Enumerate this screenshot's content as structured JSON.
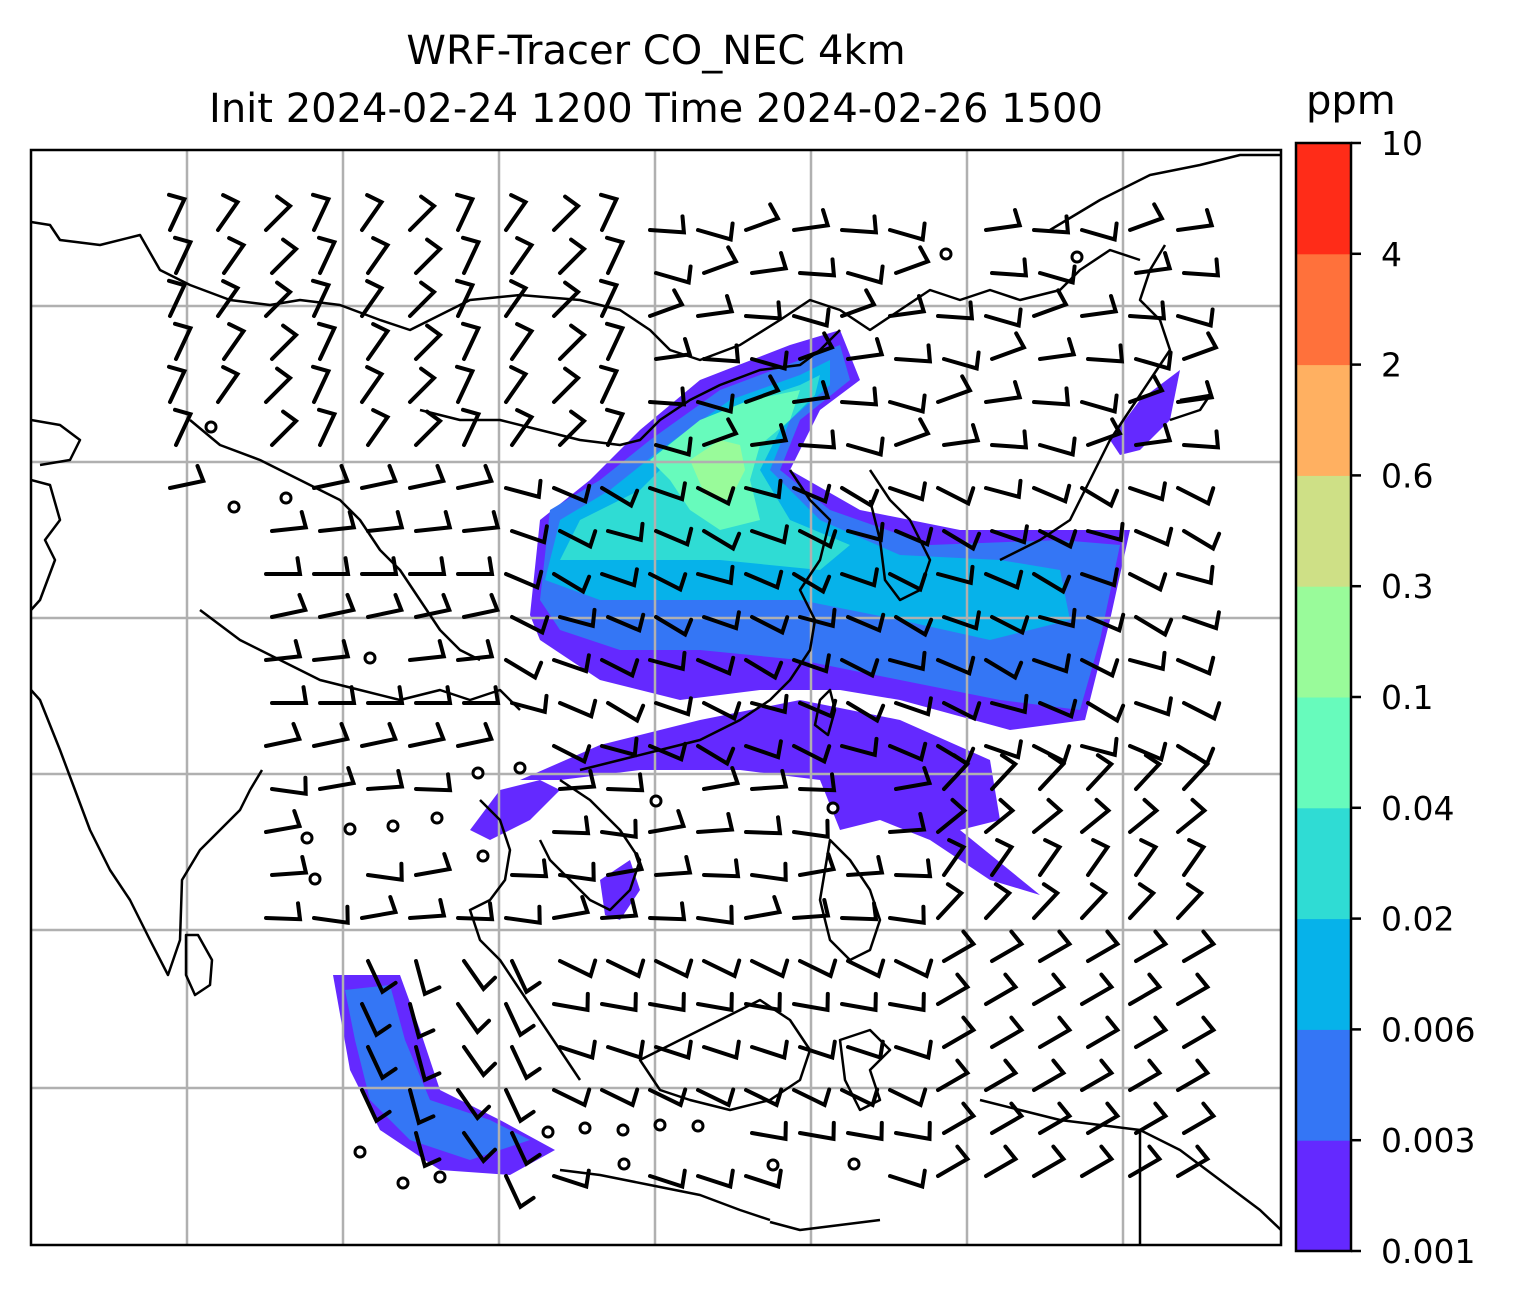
{
  "title_line1": "WRF-Tracer CO_NEC 4km",
  "title_line2": "Init 2024-02-24 1200 Time 2024-02-26 1500",
  "colorbar": {
    "unit_label": "ppm",
    "levels": [
      "0.001",
      "0.003",
      "0.006",
      "0.02",
      "0.04",
      "0.1",
      "0.3",
      "0.6",
      "2",
      "4",
      "10"
    ],
    "colors": [
      "#6429ff",
      "#3476f5",
      "#06b2ea",
      "#2fdcd4",
      "#67fbbc",
      "#99fb9a",
      "#cee086",
      "#ffb061",
      "#ff713b",
      "#ff2c18"
    ]
  },
  "map": {
    "gridlines": true,
    "coastline_color": "#000000",
    "wind_barb_color": "#000000"
  }
}
